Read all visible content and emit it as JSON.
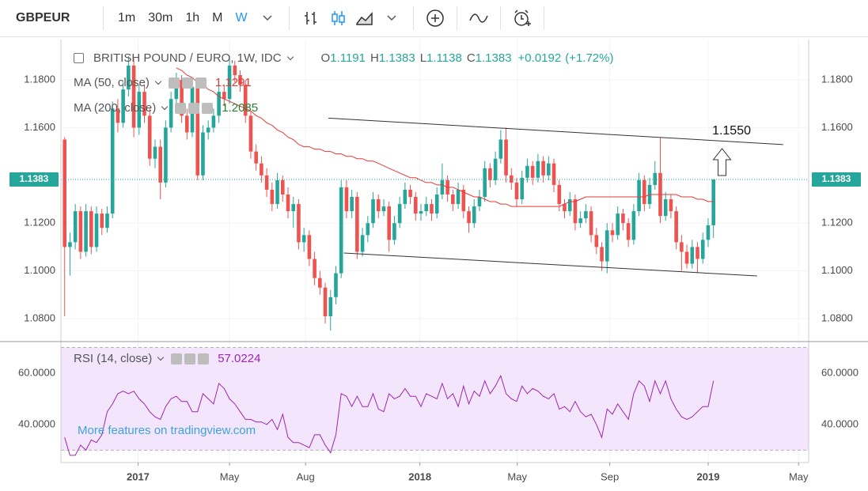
{
  "header": {
    "symbol": "GBPEUR",
    "intervals": [
      "1m",
      "30m",
      "1h",
      "M",
      "W"
    ]
  },
  "watermark": "More features on tradingview.com",
  "chart_data": {
    "type": "candlestick",
    "title": "BRITISH POUND / EURO, 1W, IDC",
    "ohlc_labels": [
      "O",
      "H",
      "L",
      "C"
    ],
    "change_label": "+0.0192",
    "change_pct_label": "(+1.72%)",
    "up_color": "#26a69a",
    "down_color": "#ef5350",
    "xlim": [
      -0.7,
      139.9
    ],
    "ylim": [
      1.0704,
      1.1969
    ],
    "xticks": [
      {
        "value": 13.8,
        "label": "2017"
      },
      {
        "value": 31.0,
        "label": "May"
      },
      {
        "value": 45.3,
        "label": "Aug"
      },
      {
        "value": 66.8,
        "label": "2018"
      },
      {
        "value": 85.1,
        "label": "May"
      },
      {
        "value": 102.5,
        "label": "Sep"
      },
      {
        "value": 121.0,
        "label": "2019"
      },
      {
        "value": 138.0,
        "label": "May"
      }
    ],
    "yticks": [
      {
        "value": 1.08,
        "label": "1.0800"
      },
      {
        "value": 1.1,
        "label": "1.1000"
      },
      {
        "value": 1.12,
        "label": "1.1200"
      },
      {
        "value": 1.16,
        "label": "1.1600"
      },
      {
        "value": 1.18,
        "label": "1.1800"
      }
    ],
    "grid": true,
    "ohlc": [
      [
        1.155,
        1.156,
        1.081,
        1.11
      ],
      [
        1.11,
        1.116,
        1.098,
        1.112
      ],
      [
        1.112,
        1.128,
        1.109,
        1.125
      ],
      [
        1.125,
        1.127,
        1.105,
        1.108
      ],
      [
        1.108,
        1.128,
        1.106,
        1.125
      ],
      [
        1.125,
        1.127,
        1.107,
        1.11
      ],
      [
        1.11,
        1.127,
        1.108,
        1.124
      ],
      [
        1.124,
        1.126,
        1.115,
        1.118
      ],
      [
        1.118,
        1.127,
        1.116,
        1.124
      ],
      [
        1.124,
        1.171,
        1.122,
        1.168
      ],
      [
        1.168,
        1.172,
        1.158,
        1.162
      ],
      [
        1.162,
        1.179,
        1.16,
        1.176
      ],
      [
        1.176,
        1.19,
        1.173,
        1.186
      ],
      [
        1.186,
        1.189,
        1.156,
        1.16
      ],
      [
        1.16,
        1.178,
        1.157,
        1.175
      ],
      [
        1.175,
        1.178,
        1.162,
        1.165
      ],
      [
        1.165,
        1.168,
        1.144,
        1.147
      ],
      [
        1.147,
        1.155,
        1.143,
        1.152
      ],
      [
        1.152,
        1.155,
        1.13,
        1.137
      ],
      [
        1.137,
        1.163,
        1.135,
        1.16
      ],
      [
        1.16,
        1.175,
        1.158,
        1.172
      ],
      [
        1.172,
        1.183,
        1.17,
        1.18
      ],
      [
        1.18,
        1.182,
        1.162,
        1.165
      ],
      [
        1.165,
        1.168,
        1.155,
        1.158
      ],
      [
        1.158,
        1.18,
        1.156,
        1.177
      ],
      [
        1.177,
        1.179,
        1.138,
        1.14
      ],
      [
        1.14,
        1.161,
        1.138,
        1.158
      ],
      [
        1.158,
        1.163,
        1.155,
        1.16
      ],
      [
        1.16,
        1.168,
        1.158,
        1.165
      ],
      [
        1.165,
        1.178,
        1.162,
        1.175
      ],
      [
        1.175,
        1.178,
        1.169,
        1.172
      ],
      [
        1.172,
        1.19,
        1.17,
        1.186
      ],
      [
        1.186,
        1.188,
        1.179,
        1.182
      ],
      [
        1.182,
        1.184,
        1.175,
        1.178
      ],
      [
        1.178,
        1.18,
        1.162,
        1.165
      ],
      [
        1.165,
        1.167,
        1.147,
        1.15
      ],
      [
        1.15,
        1.153,
        1.142,
        1.145
      ],
      [
        1.145,
        1.148,
        1.137,
        1.14
      ],
      [
        1.14,
        1.143,
        1.131,
        1.134
      ],
      [
        1.134,
        1.137,
        1.125,
        1.128
      ],
      [
        1.128,
        1.141,
        1.126,
        1.138
      ],
      [
        1.138,
        1.14,
        1.129,
        1.132
      ],
      [
        1.132,
        1.135,
        1.122,
        1.125
      ],
      [
        1.125,
        1.131,
        1.118,
        1.128
      ],
      [
        1.128,
        1.13,
        1.109,
        1.112
      ],
      [
        1.112,
        1.118,
        1.108,
        1.115
      ],
      [
        1.115,
        1.117,
        1.102,
        1.105
      ],
      [
        1.105,
        1.108,
        1.094,
        1.097
      ],
      [
        1.097,
        1.1,
        1.09,
        1.093
      ],
      [
        1.093,
        1.095,
        1.078,
        1.081
      ],
      [
        1.081,
        1.092,
        1.075,
        1.089
      ],
      [
        1.089,
        1.102,
        1.086,
        1.099
      ],
      [
        1.099,
        1.138,
        1.097,
        1.135
      ],
      [
        1.135,
        1.138,
        1.122,
        1.125
      ],
      [
        1.125,
        1.134,
        1.122,
        1.131
      ],
      [
        1.131,
        1.133,
        1.105,
        1.108
      ],
      [
        1.108,
        1.118,
        1.106,
        1.115
      ],
      [
        1.115,
        1.123,
        1.112,
        1.12
      ],
      [
        1.12,
        1.133,
        1.118,
        1.13
      ],
      [
        1.13,
        1.132,
        1.122,
        1.125
      ],
      [
        1.125,
        1.13,
        1.123,
        1.127
      ],
      [
        1.127,
        1.129,
        1.108,
        1.113
      ],
      [
        1.113,
        1.123,
        1.111,
        1.12
      ],
      [
        1.12,
        1.131,
        1.118,
        1.128
      ],
      [
        1.128,
        1.137,
        1.126,
        1.134
      ],
      [
        1.134,
        1.136,
        1.128,
        1.131
      ],
      [
        1.131,
        1.133,
        1.121,
        1.124
      ],
      [
        1.124,
        1.128,
        1.121,
        1.125
      ],
      [
        1.125,
        1.131,
        1.123,
        1.128
      ],
      [
        1.128,
        1.13,
        1.121,
        1.124
      ],
      [
        1.124,
        1.135,
        1.122,
        1.132
      ],
      [
        1.132,
        1.145,
        1.13,
        1.138
      ],
      [
        1.138,
        1.14,
        1.129,
        1.132
      ],
      [
        1.132,
        1.134,
        1.125,
        1.128
      ],
      [
        1.128,
        1.137,
        1.126,
        1.134
      ],
      [
        1.134,
        1.136,
        1.122,
        1.125
      ],
      [
        1.125,
        1.127,
        1.116,
        1.12
      ],
      [
        1.12,
        1.13,
        1.118,
        1.127
      ],
      [
        1.127,
        1.134,
        1.125,
        1.131
      ],
      [
        1.131,
        1.146,
        1.129,
        1.143
      ],
      [
        1.143,
        1.145,
        1.135,
        1.138
      ],
      [
        1.138,
        1.15,
        1.136,
        1.147
      ],
      [
        1.147,
        1.159,
        1.145,
        1.155
      ],
      [
        1.155,
        1.16,
        1.137,
        1.14
      ],
      [
        1.14,
        1.143,
        1.134,
        1.137
      ],
      [
        1.137,
        1.139,
        1.127,
        1.13
      ],
      [
        1.13,
        1.142,
        1.128,
        1.139
      ],
      [
        1.139,
        1.147,
        1.137,
        1.144
      ],
      [
        1.144,
        1.146,
        1.136,
        1.139
      ],
      [
        1.139,
        1.149,
        1.137,
        1.146
      ],
      [
        1.146,
        1.148,
        1.137,
        1.14
      ],
      [
        1.14,
        1.148,
        1.138,
        1.145
      ],
      [
        1.145,
        1.147,
        1.133,
        1.136
      ],
      [
        1.136,
        1.138,
        1.125,
        1.128
      ],
      [
        1.128,
        1.13,
        1.122,
        1.125
      ],
      [
        1.125,
        1.133,
        1.123,
        1.13
      ],
      [
        1.13,
        1.132,
        1.117,
        1.12
      ],
      [
        1.12,
        1.125,
        1.118,
        1.122
      ],
      [
        1.122,
        1.128,
        1.12,
        1.125
      ],
      [
        1.125,
        1.127,
        1.112,
        1.115
      ],
      [
        1.115,
        1.118,
        1.107,
        1.11
      ],
      [
        1.11,
        1.112,
        1.1,
        1.104
      ],
      [
        1.104,
        1.12,
        1.099,
        1.117
      ],
      [
        1.117,
        1.12,
        1.112,
        1.115
      ],
      [
        1.115,
        1.127,
        1.113,
        1.124
      ],
      [
        1.124,
        1.126,
        1.117,
        1.12
      ],
      [
        1.12,
        1.122,
        1.11,
        1.113
      ],
      [
        1.113,
        1.128,
        1.111,
        1.125
      ],
      [
        1.125,
        1.141,
        1.123,
        1.138
      ],
      [
        1.138,
        1.14,
        1.125,
        1.128
      ],
      [
        1.128,
        1.139,
        1.126,
        1.136
      ],
      [
        1.136,
        1.146,
        1.134,
        1.141
      ],
      [
        1.141,
        1.156,
        1.12,
        1.123
      ],
      [
        1.123,
        1.133,
        1.121,
        1.13
      ],
      [
        1.13,
        1.132,
        1.122,
        1.125
      ],
      [
        1.125,
        1.127,
        1.109,
        1.112
      ],
      [
        1.112,
        1.115,
        1.1,
        1.108
      ],
      [
        1.108,
        1.111,
        1.101,
        1.103
      ],
      [
        1.103,
        1.113,
        1.101,
        1.11
      ],
      [
        1.11,
        1.112,
        1.099,
        1.105
      ],
      [
        1.105,
        1.116,
        1.103,
        1.113
      ],
      [
        1.113,
        1.122,
        1.11,
        1.1191
      ],
      [
        1.1191,
        1.1383,
        1.1138,
        1.1383
      ]
    ],
    "indicators": [
      {
        "name": "MA (50, close)",
        "color": "#e53935",
        "value_label": "1.1291",
        "values": [
          null,
          null,
          null,
          null,
          null,
          null,
          null,
          null,
          null,
          null,
          null,
          null,
          null,
          null,
          null,
          null,
          null,
          null,
          null,
          null,
          null,
          1.185,
          1.184,
          1.182,
          1.181,
          1.179,
          1.178,
          1.176,
          1.175,
          1.173,
          1.172,
          1.171,
          1.17,
          1.169,
          1.168,
          1.167,
          1.165,
          1.164,
          1.162,
          1.161,
          1.159,
          1.158,
          1.156,
          1.155,
          1.153,
          1.152,
          1.152,
          1.151,
          1.151,
          1.15,
          1.15,
          1.149,
          1.149,
          1.148,
          1.148,
          1.147,
          1.147,
          1.146,
          1.146,
          1.145,
          1.144,
          1.143,
          1.142,
          1.141,
          1.14,
          1.139,
          1.139,
          1.138,
          1.137,
          1.137,
          1.136,
          1.136,
          1.135,
          1.135,
          1.134,
          1.133,
          1.132,
          1.131,
          1.131,
          1.13,
          1.129,
          1.129,
          1.128,
          1.128,
          1.127,
          1.127,
          1.127,
          1.127,
          1.127,
          1.127,
          1.127,
          1.127,
          1.127,
          1.127,
          1.128,
          1.129,
          1.129,
          1.13,
          1.131,
          1.131,
          1.131,
          1.131,
          1.131,
          1.131,
          1.131,
          1.131,
          1.131,
          1.131,
          1.131,
          1.131,
          1.132,
          1.132,
          1.132,
          1.132,
          1.132,
          1.132,
          1.131,
          1.131,
          1.131,
          1.13,
          1.13,
          1.129,
          1.1291
        ]
      },
      {
        "name": "MA (200, close)",
        "color": "#2e7d32",
        "value_label": "1.2085"
      }
    ],
    "trendlines": [
      {
        "x": [
          49.6,
          135.1
        ],
        "y": [
          1.164,
          1.1529
        ]
      },
      {
        "x": [
          52.5,
          130.2
        ],
        "y": [
          1.1075,
          1.0979
        ]
      }
    ],
    "annotations": [
      {
        "text": "1.1550",
        "x": 125.4,
        "y": 1.1585
      }
    ],
    "rsi": {
      "name": "RSI (14, close)",
      "color": "#9c27b0",
      "value_label": "57.0224",
      "ylim": [
        25.2,
        72.3
      ],
      "yticks": [
        {
          "value": 40,
          "label": "40.0000"
        },
        {
          "value": 60,
          "label": "60.0000"
        }
      ],
      "band": [
        30,
        70
      ],
      "values": [
        35,
        28,
        28,
        32,
        30,
        34,
        33,
        36,
        45,
        48,
        52,
        53,
        52,
        53,
        50,
        48,
        45,
        43,
        42,
        47,
        50,
        51,
        49,
        49,
        45,
        45,
        52,
        50,
        48,
        56,
        54,
        50,
        48,
        45,
        42,
        42,
        41,
        41,
        40,
        42,
        38,
        44,
        35,
        33,
        33,
        32,
        31,
        36,
        36,
        32,
        29,
        36,
        52,
        51,
        47,
        51,
        47,
        47,
        52,
        46,
        45,
        52,
        50,
        51,
        54,
        51,
        51,
        47,
        52,
        51,
        50,
        56,
        50,
        52,
        47,
        55,
        48,
        53,
        51,
        57,
        52,
        55,
        59,
        52,
        50,
        49,
        55,
        52,
        54,
        53,
        51,
        50,
        52,
        46,
        47,
        45,
        49,
        45,
        43,
        44,
        40,
        35,
        46,
        44,
        48,
        45,
        42,
        52,
        57,
        55,
        49,
        57,
        52,
        57,
        50,
        46,
        43,
        42,
        43,
        45,
        47,
        47,
        57.0224
      ]
    }
  }
}
